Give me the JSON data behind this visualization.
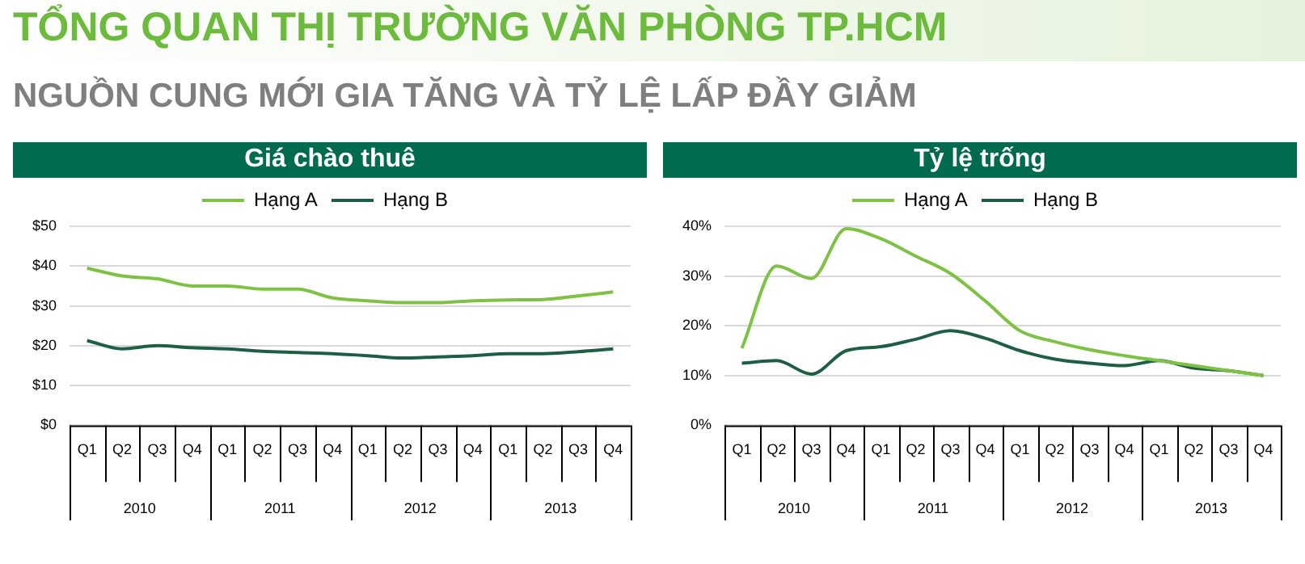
{
  "chart_data": [
    {
      "type": "other",
      "title": "TỔNG QUAN THỊ TRƯỜNG VĂN PHÒNG TP.HCM",
      "subtitle": "NGUỒN CUNG MỚI GIA TĂNG VÀ TỶ LỆ LẤP ĐẦY GIẢM"
    },
    {
      "type": "line",
      "title": "Giá chào thuê",
      "categories": [
        "Q1",
        "Q2",
        "Q3",
        "Q4",
        "Q1",
        "Q2",
        "Q3",
        "Q4",
        "Q1",
        "Q2",
        "Q3",
        "Q4",
        "Q1",
        "Q2",
        "Q3",
        "Q4"
      ],
      "annotations": [
        "2010",
        "2011",
        "2012",
        "2013"
      ],
      "series": [
        {
          "name": "Hạng A",
          "color": "#7dc242",
          "values": [
            39.5,
            37.5,
            36.8,
            35,
            35,
            34.2,
            34.2,
            32,
            31.3,
            30.8,
            30.8,
            31.3,
            31.5,
            31.6,
            32.5,
            33.5
          ]
        },
        {
          "name": "Hạng B",
          "color": "#1d5e45",
          "values": [
            21.3,
            19.2,
            20,
            19.5,
            19.2,
            18.6,
            18.3,
            18,
            17.5,
            16.9,
            17.2,
            17.5,
            18,
            18,
            18.5,
            19.2
          ]
        }
      ],
      "ylim": [
        0,
        50
      ],
      "yticks": [
        {
          "value": 0,
          "label": "$0"
        },
        {
          "value": 10,
          "label": "$10"
        },
        {
          "value": 20,
          "label": "$20"
        },
        {
          "value": 30,
          "label": "$30"
        },
        {
          "value": 40,
          "label": "$40"
        },
        {
          "value": 50,
          "label": "$50"
        }
      ],
      "grid": "y",
      "legend": "top",
      "marker": "none"
    },
    {
      "type": "line",
      "title": "Tỷ lệ trống",
      "categories": [
        "Q1",
        "Q2",
        "Q3",
        "Q4",
        "Q1",
        "Q2",
        "Q3",
        "Q4",
        "Q1",
        "Q2",
        "Q3",
        "Q4",
        "Q1",
        "Q2",
        "Q3",
        "Q4"
      ],
      "annotations": [
        "2010",
        "2011",
        "2012",
        "2013"
      ],
      "series": [
        {
          "name": "Hạng A",
          "color": "#7dc242",
          "values": [
            15.5,
            32,
            29.5,
            39.5,
            37.5,
            34,
            30.5,
            25,
            19,
            16.8,
            15.2,
            14,
            13,
            12,
            11,
            10
          ]
        },
        {
          "name": "Hạng B",
          "color": "#1d5e45",
          "values": [
            12.5,
            13,
            10.3,
            15,
            15.8,
            17.3,
            19,
            17.5,
            15,
            13.3,
            12.5,
            12,
            13,
            11.5,
            11,
            10
          ]
        }
      ],
      "ylim": [
        0,
        40
      ],
      "yticks": [
        {
          "value": 0,
          "label": "0%"
        },
        {
          "value": 10,
          "label": "10%"
        },
        {
          "value": 20,
          "label": "20%"
        },
        {
          "value": 30,
          "label": "30%"
        },
        {
          "value": 40,
          "label": "40%"
        }
      ],
      "grid": "y",
      "legend": "top",
      "marker": "none"
    }
  ]
}
